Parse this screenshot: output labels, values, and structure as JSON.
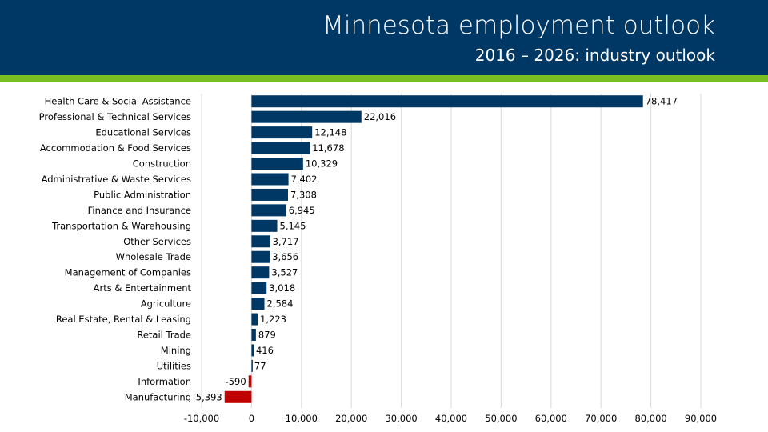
{
  "header": {
    "title": "Minnesota employment outlook",
    "subtitle": "2016 – 2026: industry outlook"
  },
  "colors": {
    "header_bg": "#003865",
    "accent_green": "#78be20",
    "bar_positive": "#003865",
    "bar_negative": "#c00000",
    "grid": "#d9d9d9"
  },
  "chart_data": {
    "type": "bar",
    "orientation": "horizontal",
    "title": "Minnesota employment outlook",
    "subtitle": "2016 – 2026: industry outlook",
    "xlabel": "",
    "ylabel": "",
    "xlim": [
      -10000,
      90000
    ],
    "xticks": [
      -10000,
      0,
      10000,
      20000,
      30000,
      40000,
      50000,
      60000,
      70000,
      80000,
      90000
    ],
    "xtick_labels": [
      "-10,000",
      "0",
      "10,000",
      "20,000",
      "30,000",
      "40,000",
      "50,000",
      "60,000",
      "70,000",
      "80,000",
      "90,000"
    ],
    "grid": true,
    "categories": [
      "Health Care & Social Assistance",
      "Professional & Technical Services",
      "Educational Services",
      "Accommodation & Food Services",
      "Construction",
      "Administrative & Waste Services",
      "Public Administration",
      "Finance and Insurance",
      "Transportation & Warehousing",
      "Other Services",
      "Wholesale Trade",
      "Management of Companies",
      "Arts & Entertainment",
      "Agriculture",
      "Real Estate, Rental & Leasing",
      "Retail Trade",
      "Mining",
      "Utilities",
      "Information",
      "Manufacturing"
    ],
    "values": [
      78417,
      22016,
      12148,
      11678,
      10329,
      7402,
      7308,
      6945,
      5145,
      3717,
      3656,
      3527,
      3018,
      2584,
      1223,
      879,
      416,
      77,
      -590,
      -5393
    ],
    "value_labels": [
      "78,417",
      "22,016",
      "12,148",
      "11,678",
      "10,329",
      "7,402",
      "7,308",
      "6,945",
      "5,145",
      "3,717",
      "3,656",
      "3,527",
      "3,018",
      "2,584",
      "1,223",
      "879",
      "416",
      "77",
      "-590",
      "-5,393"
    ]
  }
}
